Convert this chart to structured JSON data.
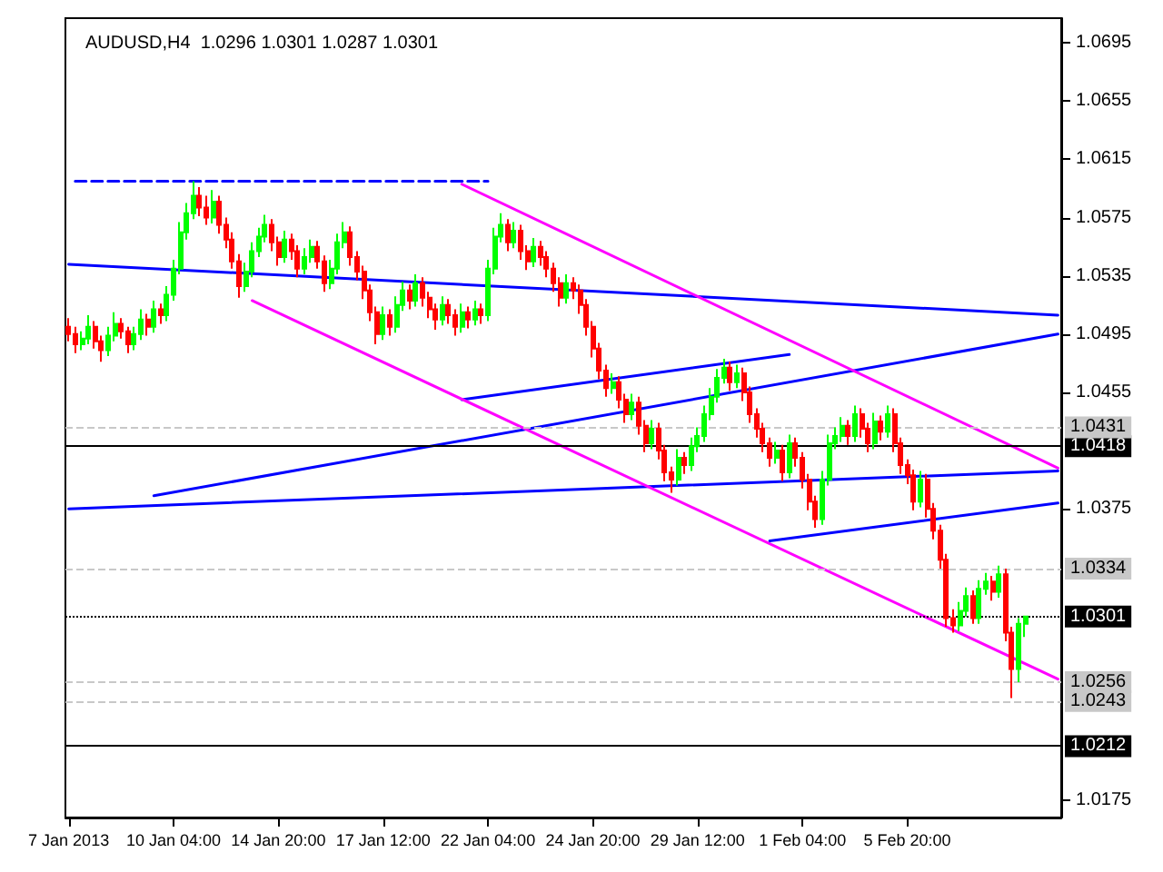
{
  "chart_data": {
    "type": "candlestick",
    "title": "AUDUSD,H4  1.0296 1.0301 1.0287 1.0301",
    "categories": [
      "7 Jan 2013",
      null,
      null,
      null,
      null,
      null,
      null,
      null,
      null,
      null,
      null,
      null,
      null,
      null,
      null,
      null,
      "10 Jan 04:00",
      null,
      null,
      null,
      null,
      null,
      null,
      null,
      null,
      null,
      null,
      null,
      null,
      null,
      null,
      null,
      "14 Jan 20:00",
      null,
      null,
      null,
      null,
      null,
      null,
      null,
      null,
      null,
      null,
      null,
      null,
      null,
      null,
      null,
      "17 Jan 12:00",
      null,
      null,
      null,
      null,
      null,
      null,
      null,
      null,
      null,
      null,
      null,
      null,
      null,
      null,
      null,
      "22 Jan 04:00",
      null,
      null,
      null,
      null,
      null,
      null,
      null,
      null,
      null,
      null,
      null,
      null,
      null,
      null,
      null,
      "24 Jan 20:00",
      null,
      null,
      null,
      null,
      null,
      null,
      null,
      null,
      null,
      null,
      null,
      null,
      null,
      null,
      null,
      "29 Jan 12:00",
      null,
      null,
      null,
      null,
      null,
      null,
      null,
      null,
      null,
      null,
      null,
      null,
      null,
      null,
      null,
      "1 Feb 04:00",
      null,
      null,
      null,
      null,
      null,
      null,
      null,
      null,
      null,
      null,
      null,
      null,
      null,
      null,
      null,
      "5 Feb 20:00",
      null,
      null,
      null,
      null,
      null,
      null,
      null,
      null,
      null,
      null,
      null,
      null,
      null,
      null,
      null,
      null,
      null,
      null,
      null,
      null,
      null,
      null,
      null
    ],
    "ohlc": [
      [
        1.05,
        1.0506,
        1.049,
        1.0495
      ],
      [
        1.0495,
        1.05,
        1.0482,
        1.0488
      ],
      [
        1.0488,
        1.0497,
        1.0484,
        1.0492
      ],
      [
        1.0492,
        1.0508,
        1.0488,
        1.05
      ],
      [
        1.05,
        1.0504,
        1.0485,
        1.049
      ],
      [
        1.049,
        1.0494,
        1.0476,
        1.0484
      ],
      [
        1.0484,
        1.05,
        1.048,
        1.0494
      ],
      [
        1.0494,
        1.051,
        1.049,
        1.0502
      ],
      [
        1.0502,
        1.0506,
        1.0492,
        1.0497
      ],
      [
        1.0497,
        1.05,
        1.0482,
        1.0488
      ],
      [
        1.0488,
        1.05,
        1.0484,
        1.0495
      ],
      [
        1.0495,
        1.0512,
        1.0491,
        1.0505
      ],
      [
        1.0505,
        1.0509,
        1.0494,
        1.05
      ],
      [
        1.05,
        1.0518,
        1.0496,
        1.0512
      ],
      [
        1.0512,
        1.0516,
        1.0502,
        1.0508
      ],
      [
        1.0508,
        1.0528,
        1.0504,
        1.0522
      ],
      [
        1.0522,
        1.0546,
        1.0518,
        1.054
      ],
      [
        1.054,
        1.0572,
        1.0536,
        1.0565
      ],
      [
        1.0565,
        1.0585,
        1.056,
        1.0578
      ],
      [
        1.0578,
        1.06,
        1.0574,
        1.059
      ],
      [
        1.059,
        1.0596,
        1.0576,
        1.0582
      ],
      [
        1.0582,
        1.059,
        1.057,
        1.0575
      ],
      [
        1.0575,
        1.0594,
        1.0571,
        1.0586
      ],
      [
        1.0586,
        1.059,
        1.0564,
        1.057
      ],
      [
        1.057,
        1.0575,
        1.0554,
        1.056
      ],
      [
        1.056,
        1.0565,
        1.054,
        1.0545
      ],
      [
        1.0545,
        1.055,
        1.052,
        1.0528
      ],
      [
        1.0528,
        1.0544,
        1.0524,
        1.0538
      ],
      [
        1.0538,
        1.0558,
        1.0534,
        1.0552
      ],
      [
        1.0552,
        1.0568,
        1.0548,
        1.0562
      ],
      [
        1.0562,
        1.0577,
        1.0558,
        1.057
      ],
      [
        1.057,
        1.0574,
        1.0552,
        1.0558
      ],
      [
        1.0558,
        1.0562,
        1.0542,
        1.0548
      ],
      [
        1.0548,
        1.0566,
        1.0544,
        1.056
      ],
      [
        1.056,
        1.0564,
        1.0546,
        1.0552
      ],
      [
        1.0552,
        1.0556,
        1.0534,
        1.054
      ],
      [
        1.054,
        1.0554,
        1.0536,
        1.0548
      ],
      [
        1.0548,
        1.056,
        1.0544,
        1.0555
      ],
      [
        1.0555,
        1.0559,
        1.054,
        1.0545
      ],
      [
        1.0545,
        1.0549,
        1.0524,
        1.053
      ],
      [
        1.053,
        1.0546,
        1.0526,
        1.054
      ],
      [
        1.054,
        1.0564,
        1.0536,
        1.0558
      ],
      [
        1.0558,
        1.0572,
        1.0554,
        1.0565
      ],
      [
        1.0565,
        1.0569,
        1.0542,
        1.0548
      ],
      [
        1.0548,
        1.0552,
        1.0532,
        1.0538
      ],
      [
        1.0538,
        1.0542,
        1.0519,
        1.0525
      ],
      [
        1.0525,
        1.0529,
        1.0504,
        1.051
      ],
      [
        1.051,
        1.0514,
        1.0488,
        1.0495
      ],
      [
        1.0495,
        1.0514,
        1.0491,
        1.0508
      ],
      [
        1.0508,
        1.0512,
        1.0494,
        1.05
      ],
      [
        1.05,
        1.0521,
        1.0496,
        1.0515
      ],
      [
        1.0515,
        1.0531,
        1.0511,
        1.0525
      ],
      [
        1.0525,
        1.0529,
        1.0512,
        1.0518
      ],
      [
        1.0518,
        1.0536,
        1.0514,
        1.053
      ],
      [
        1.053,
        1.0534,
        1.0514,
        1.052
      ],
      [
        1.052,
        1.0524,
        1.0506,
        1.0512
      ],
      [
        1.0512,
        1.0516,
        1.0498,
        1.0505
      ],
      [
        1.0505,
        1.0521,
        1.0501,
        1.0515
      ],
      [
        1.0515,
        1.0519,
        1.0502,
        1.0508
      ],
      [
        1.0508,
        1.0512,
        1.0494,
        1.05
      ],
      [
        1.05,
        1.0516,
        1.0496,
        1.051
      ],
      [
        1.051,
        1.0514,
        1.0499,
        1.0505
      ],
      [
        1.0505,
        1.0518,
        1.0501,
        1.0512
      ],
      [
        1.0512,
        1.0516,
        1.0502,
        1.0508
      ],
      [
        1.0508,
        1.0546,
        1.0504,
        1.054
      ],
      [
        1.054,
        1.0568,
        1.0536,
        1.0562
      ],
      [
        1.0562,
        1.0578,
        1.0558,
        1.057
      ],
      [
        1.057,
        1.0574,
        1.0552,
        1.0558
      ],
      [
        1.0558,
        1.0572,
        1.0554,
        1.0566
      ],
      [
        1.0566,
        1.057,
        1.0546,
        1.0552
      ],
      [
        1.0552,
        1.0556,
        1.0539,
        1.0545
      ],
      [
        1.0545,
        1.0561,
        1.0541,
        1.0555
      ],
      [
        1.0555,
        1.0559,
        1.0542,
        1.0548
      ],
      [
        1.0548,
        1.0552,
        1.0534,
        1.054
      ],
      [
        1.054,
        1.0544,
        1.0524,
        1.053
      ],
      [
        1.053,
        1.0534,
        1.0514,
        1.052
      ],
      [
        1.052,
        1.0536,
        1.0516,
        1.053
      ],
      [
        1.053,
        1.0534,
        1.0519,
        1.0525
      ],
      [
        1.0525,
        1.0529,
        1.0509,
        1.0515
      ],
      [
        1.0515,
        1.0519,
        1.0494,
        1.05
      ],
      [
        1.05,
        1.0504,
        1.0479,
        1.0485
      ],
      [
        1.0485,
        1.0489,
        1.0464,
        1.047
      ],
      [
        1.047,
        1.0474,
        1.0452,
        1.0458
      ],
      [
        1.0458,
        1.0468,
        1.0454,
        1.0462
      ],
      [
        1.0462,
        1.0466,
        1.0444,
        1.045
      ],
      [
        1.045,
        1.0454,
        1.0434,
        1.044
      ],
      [
        1.044,
        1.0454,
        1.0436,
        1.0448
      ],
      [
        1.0448,
        1.0452,
        1.0426,
        1.0432
      ],
      [
        1.0432,
        1.0436,
        1.0414,
        1.042
      ],
      [
        1.042,
        1.0436,
        1.0416,
        1.043
      ],
      [
        1.043,
        1.0434,
        1.0409,
        1.0415
      ],
      [
        1.0415,
        1.0419,
        1.0394,
        1.04
      ],
      [
        1.04,
        1.0404,
        1.0386,
        1.0395
      ],
      [
        1.0395,
        1.0416,
        1.0391,
        1.041
      ],
      [
        1.041,
        1.0414,
        1.0399,
        1.0405
      ],
      [
        1.0405,
        1.0424,
        1.0401,
        1.0418
      ],
      [
        1.0418,
        1.0431,
        1.0414,
        1.0425
      ],
      [
        1.0425,
        1.0446,
        1.0421,
        1.044
      ],
      [
        1.044,
        1.0458,
        1.0436,
        1.0452
      ],
      [
        1.0452,
        1.0471,
        1.0448,
        1.0465
      ],
      [
        1.0465,
        1.0478,
        1.0461,
        1.0472
      ],
      [
        1.0472,
        1.0476,
        1.0456,
        1.0462
      ],
      [
        1.0462,
        1.0474,
        1.0458,
        1.0468
      ],
      [
        1.0468,
        1.0472,
        1.0449,
        1.0455
      ],
      [
        1.0455,
        1.0459,
        1.0434,
        1.044
      ],
      [
        1.044,
        1.0444,
        1.0424,
        1.043
      ],
      [
        1.043,
        1.0434,
        1.0414,
        1.042
      ],
      [
        1.042,
        1.0424,
        1.0404,
        1.041
      ],
      [
        1.041,
        1.0421,
        1.0406,
        1.0415
      ],
      [
        1.0415,
        1.0419,
        1.0394,
        1.04
      ],
      [
        1.04,
        1.0426,
        1.0396,
        1.042
      ],
      [
        1.042,
        1.0424,
        1.0404,
        1.041
      ],
      [
        1.041,
        1.0414,
        1.0389,
        1.0395
      ],
      [
        1.0395,
        1.0399,
        1.0374,
        1.038
      ],
      [
        1.038,
        1.0384,
        1.0362,
        1.0368
      ],
      [
        1.0368,
        1.0401,
        1.0364,
        1.0395
      ],
      [
        1.0395,
        1.0426,
        1.0391,
        1.042
      ],
      [
        1.042,
        1.0431,
        1.0416,
        1.0425
      ],
      [
        1.0425,
        1.0438,
        1.0421,
        1.0432
      ],
      [
        1.0432,
        1.0436,
        1.0419,
        1.0425
      ],
      [
        1.0425,
        1.0446,
        1.0421,
        1.044
      ],
      [
        1.044,
        1.0444,
        1.0424,
        1.043
      ],
      [
        1.043,
        1.0434,
        1.0414,
        1.042
      ],
      [
        1.042,
        1.0441,
        1.0416,
        1.0435
      ],
      [
        1.0435,
        1.0439,
        1.0422,
        1.0428
      ],
      [
        1.0428,
        1.0446,
        1.0424,
        1.044
      ],
      [
        1.044,
        1.0444,
        1.0414,
        1.042
      ],
      [
        1.042,
        1.0424,
        1.0399,
        1.0405
      ],
      [
        1.0405,
        1.0409,
        1.0392,
        1.0398
      ],
      [
        1.0398,
        1.0402,
        1.0374,
        1.038
      ],
      [
        1.038,
        1.0401,
        1.0376,
        1.0395
      ],
      [
        1.0395,
        1.0399,
        1.0369,
        1.0375
      ],
      [
        1.0375,
        1.0379,
        1.0354,
        1.036
      ],
      [
        1.036,
        1.0364,
        1.0334,
        1.034
      ],
      [
        1.034,
        1.0344,
        1.0294,
        1.03
      ],
      [
        1.03,
        1.0306,
        1.029,
        1.0295
      ],
      [
        1.0295,
        1.0311,
        1.0291,
        1.0305
      ],
      [
        1.0305,
        1.0321,
        1.0301,
        1.0315
      ],
      [
        1.0315,
        1.0319,
        1.0296,
        1.03
      ],
      [
        1.03,
        1.0326,
        1.0296,
        1.032
      ],
      [
        1.032,
        1.0331,
        1.0316,
        1.0325
      ],
      [
        1.0325,
        1.0329,
        1.0312,
        1.0318
      ],
      [
        1.0318,
        1.0336,
        1.0314,
        1.033
      ],
      [
        1.033,
        1.0334,
        1.0284,
        1.029
      ],
      [
        1.029,
        1.0294,
        1.0245,
        1.0265
      ],
      [
        1.0265,
        1.03,
        1.0256,
        1.0296
      ],
      [
        1.0296,
        1.0301,
        1.0287,
        1.0301
      ],
      null,
      null,
      null,
      null,
      null
    ],
    "series": [
      {
        "type": "line",
        "color": "#0000ff",
        "values": [
          1.0543,
          null,
          null,
          null,
          null,
          null,
          null,
          null,
          null,
          null,
          null,
          null,
          null,
          null,
          null,
          null,
          null,
          null,
          null,
          null,
          null,
          null,
          null,
          null,
          null,
          null,
          null,
          null,
          null,
          null,
          null,
          null,
          null,
          null,
          null,
          null,
          null,
          null,
          null,
          null,
          null,
          null,
          null,
          null,
          null,
          null,
          null,
          null,
          null,
          null,
          null,
          null,
          null,
          null,
          null,
          null,
          null,
          null,
          null,
          null,
          null,
          null,
          null,
          null,
          null,
          null,
          null,
          null,
          null,
          null,
          null,
          null,
          null,
          null,
          null,
          null,
          null,
          null,
          null,
          null,
          null,
          null,
          null,
          null,
          null,
          null,
          null,
          null,
          null,
          null,
          null,
          null,
          null,
          null,
          null,
          null,
          null,
          null,
          null,
          null,
          null,
          null,
          null,
          null,
          null,
          null,
          null,
          null,
          null,
          null,
          null,
          null,
          null,
          null,
          null,
          null,
          null,
          null,
          null,
          null,
          null,
          null,
          null,
          null,
          null,
          null,
          null,
          null,
          null,
          null,
          null,
          null,
          null,
          null,
          null,
          null,
          null,
          null,
          null,
          null,
          null,
          null,
          null,
          null,
          null,
          null,
          null,
          null,
          null,
          null,
          null,
          1.0508
        ]
      },
      {
        "type": "line",
        "color": "#0000ff",
        "values": [
          null,
          null,
          null,
          null,
          null,
          null,
          null,
          null,
          null,
          null,
          null,
          null,
          null,
          1.0384,
          null,
          null,
          null,
          null,
          null,
          null,
          null,
          null,
          null,
          null,
          null,
          null,
          null,
          null,
          null,
          null,
          null,
          null,
          null,
          null,
          null,
          null,
          null,
          null,
          null,
          null,
          null,
          null,
          null,
          null,
          null,
          null,
          null,
          null,
          null,
          null,
          null,
          null,
          null,
          null,
          null,
          null,
          null,
          null,
          null,
          null,
          null,
          null,
          null,
          null,
          null,
          null,
          null,
          null,
          null,
          null,
          null,
          null,
          null,
          null,
          null,
          null,
          null,
          null,
          null,
          null,
          null,
          null,
          null,
          null,
          null,
          null,
          null,
          null,
          null,
          null,
          null,
          null,
          null,
          null,
          null,
          null,
          null,
          null,
          null,
          null,
          null,
          null,
          null,
          null,
          null,
          null,
          null,
          null,
          null,
          null,
          null,
          null,
          null,
          null,
          null,
          null,
          null,
          null,
          null,
          null,
          null,
          null,
          null,
          null,
          null,
          null,
          null,
          null,
          null,
          null,
          null,
          null,
          null,
          null,
          null,
          null,
          null,
          null,
          null,
          null,
          null,
          null,
          null,
          null,
          null,
          null,
          null,
          null,
          null,
          null,
          null,
          1.0495
        ]
      },
      {
        "type": "line",
        "color": "#0000ff",
        "values": [
          1.0375,
          null,
          null,
          null,
          null,
          null,
          null,
          null,
          null,
          null,
          null,
          null,
          null,
          null,
          null,
          null,
          null,
          null,
          null,
          null,
          null,
          null,
          null,
          null,
          null,
          null,
          null,
          null,
          null,
          null,
          null,
          null,
          null,
          null,
          null,
          null,
          null,
          null,
          null,
          null,
          null,
          null,
          null,
          null,
          null,
          null,
          null,
          null,
          null,
          null,
          null,
          null,
          null,
          null,
          null,
          null,
          null,
          null,
          null,
          null,
          null,
          null,
          null,
          null,
          null,
          null,
          null,
          null,
          null,
          null,
          null,
          null,
          null,
          null,
          null,
          null,
          null,
          null,
          null,
          null,
          null,
          null,
          null,
          null,
          null,
          null,
          null,
          null,
          null,
          null,
          null,
          null,
          null,
          null,
          null,
          null,
          null,
          null,
          null,
          null,
          null,
          null,
          null,
          null,
          null,
          null,
          null,
          null,
          null,
          null,
          null,
          null,
          null,
          null,
          null,
          null,
          null,
          null,
          null,
          null,
          null,
          null,
          null,
          null,
          null,
          null,
          null,
          null,
          null,
          null,
          null,
          null,
          null,
          null,
          null,
          null,
          null,
          null,
          null,
          null,
          null,
          null,
          null,
          null,
          null,
          null,
          null,
          null,
          null,
          null,
          null,
          1.0401
        ]
      },
      {
        "type": "line",
        "color": "#0000ff",
        "values": [
          null,
          null,
          null,
          null,
          null,
          null,
          null,
          null,
          null,
          null,
          null,
          null,
          null,
          null,
          null,
          null,
          null,
          null,
          null,
          null,
          null,
          null,
          null,
          null,
          null,
          null,
          null,
          null,
          null,
          null,
          null,
          null,
          null,
          null,
          null,
          null,
          null,
          null,
          null,
          null,
          null,
          null,
          null,
          null,
          null,
          null,
          null,
          null,
          null,
          null,
          null,
          null,
          null,
          null,
          null,
          null,
          null,
          null,
          null,
          null,
          1.045,
          null,
          null,
          null,
          null,
          null,
          null,
          null,
          null,
          null,
          null,
          null,
          null,
          null,
          null,
          null,
          null,
          null,
          null,
          null,
          null,
          null,
          null,
          null,
          null,
          null,
          null,
          null,
          null,
          null,
          null,
          null,
          null,
          null,
          null,
          null,
          null,
          null,
          null,
          null,
          null,
          null,
          null,
          null,
          null,
          null,
          null,
          null,
          null,
          null,
          1.0481,
          null,
          null,
          null,
          null,
          null,
          null,
          null,
          null,
          null,
          null,
          null,
          null,
          null,
          null,
          null,
          null,
          null,
          null,
          null,
          null,
          null,
          null,
          null,
          null,
          null,
          null,
          null,
          null,
          null,
          null,
          null,
          null,
          null,
          null,
          null,
          null,
          null,
          null,
          null,
          null,
          null
        ]
      },
      {
        "type": "line",
        "color": "#0000ff",
        "values": [
          null,
          null,
          null,
          null,
          null,
          null,
          null,
          null,
          null,
          null,
          null,
          null,
          null,
          null,
          null,
          null,
          null,
          null,
          null,
          null,
          null,
          null,
          null,
          null,
          null,
          null,
          null,
          null,
          null,
          null,
          null,
          null,
          null,
          null,
          null,
          null,
          null,
          null,
          null,
          null,
          null,
          null,
          null,
          null,
          null,
          null,
          null,
          null,
          null,
          null,
          null,
          null,
          null,
          null,
          null,
          null,
          null,
          null,
          null,
          null,
          null,
          null,
          null,
          null,
          null,
          null,
          null,
          null,
          null,
          null,
          null,
          null,
          null,
          null,
          null,
          null,
          null,
          null,
          null,
          null,
          null,
          null,
          null,
          null,
          null,
          null,
          null,
          null,
          null,
          null,
          null,
          null,
          null,
          null,
          null,
          null,
          null,
          null,
          null,
          null,
          null,
          null,
          null,
          null,
          null,
          null,
          null,
          1.0353,
          null,
          null,
          null,
          null,
          null,
          null,
          null,
          null,
          null,
          null,
          null,
          null,
          null,
          null,
          null,
          null,
          null,
          null,
          null,
          null,
          null,
          null,
          null,
          null,
          null,
          null,
          null,
          null,
          null,
          null,
          null,
          null,
          null,
          null,
          null,
          null,
          null,
          null,
          null,
          null,
          null,
          null,
          null,
          1.0379
        ]
      },
      {
        "type": "line",
        "color": "#0000ff",
        "line_style": "dashed",
        "values": [
          null,
          1.06,
          null,
          null,
          null,
          null,
          null,
          null,
          null,
          null,
          null,
          null,
          null,
          null,
          null,
          null,
          null,
          null,
          null,
          null,
          null,
          null,
          null,
          null,
          null,
          null,
          null,
          null,
          null,
          null,
          null,
          null,
          null,
          null,
          null,
          null,
          null,
          null,
          null,
          null,
          null,
          null,
          null,
          null,
          null,
          null,
          null,
          null,
          null,
          null,
          null,
          null,
          null,
          null,
          null,
          null,
          null,
          null,
          null,
          null,
          null,
          null,
          null,
          null,
          1.06,
          null,
          null,
          null,
          null,
          null,
          null,
          null,
          null,
          null,
          null,
          null,
          null,
          null,
          null,
          null,
          null,
          null,
          null,
          null,
          null,
          null,
          null,
          null,
          null,
          null,
          null,
          null,
          null,
          null,
          null,
          null,
          null,
          null,
          null,
          null,
          null,
          null,
          null,
          null,
          null,
          null,
          null,
          null,
          null,
          null,
          null,
          null,
          null,
          null,
          null,
          null,
          null,
          null,
          null,
          null,
          null,
          null,
          null,
          null,
          null,
          null,
          null,
          null,
          null,
          null,
          null,
          null,
          null,
          null,
          null,
          null,
          null,
          null,
          null,
          null,
          null,
          null,
          null,
          null,
          null,
          null,
          null,
          null,
          null,
          null,
          null,
          null
        ]
      },
      {
        "type": "line",
        "color": "#ff00ff",
        "values": [
          null,
          null,
          null,
          null,
          null,
          null,
          null,
          null,
          null,
          null,
          null,
          null,
          null,
          null,
          null,
          null,
          null,
          null,
          null,
          null,
          null,
          null,
          null,
          null,
          null,
          null,
          null,
          null,
          1.0518,
          null,
          null,
          null,
          null,
          null,
          null,
          null,
          null,
          null,
          null,
          null,
          null,
          null,
          null,
          null,
          null,
          null,
          null,
          null,
          null,
          null,
          null,
          null,
          null,
          null,
          null,
          null,
          null,
          null,
          null,
          null,
          null,
          null,
          null,
          null,
          null,
          null,
          null,
          null,
          null,
          null,
          null,
          null,
          null,
          null,
          null,
          null,
          null,
          null,
          null,
          null,
          null,
          null,
          null,
          null,
          null,
          null,
          null,
          null,
          null,
          null,
          null,
          null,
          null,
          null,
          null,
          null,
          null,
          null,
          null,
          null,
          null,
          null,
          null,
          null,
          null,
          null,
          null,
          null,
          null,
          null,
          null,
          null,
          null,
          null,
          null,
          null,
          null,
          null,
          null,
          null,
          null,
          null,
          null,
          null,
          null,
          null,
          null,
          null,
          null,
          null,
          null,
          null,
          null,
          null,
          null,
          null,
          null,
          null,
          null,
          null,
          null,
          null,
          null,
          null,
          null,
          null,
          null,
          null,
          null,
          null,
          null,
          1.0258
        ]
      },
      {
        "type": "line",
        "color": "#ff00ff",
        "values": [
          null,
          null,
          null,
          null,
          null,
          null,
          null,
          null,
          null,
          null,
          null,
          null,
          null,
          null,
          null,
          null,
          null,
          null,
          null,
          null,
          null,
          null,
          null,
          null,
          null,
          null,
          null,
          null,
          null,
          null,
          null,
          null,
          null,
          null,
          null,
          null,
          null,
          null,
          null,
          null,
          null,
          null,
          null,
          null,
          null,
          null,
          null,
          null,
          null,
          null,
          null,
          null,
          null,
          null,
          null,
          null,
          null,
          null,
          null,
          null,
          1.0598,
          null,
          null,
          null,
          null,
          null,
          null,
          null,
          null,
          null,
          null,
          null,
          null,
          null,
          null,
          null,
          null,
          null,
          null,
          null,
          null,
          null,
          null,
          null,
          null,
          null,
          null,
          null,
          null,
          null,
          null,
          null,
          null,
          null,
          null,
          null,
          null,
          null,
          null,
          null,
          null,
          null,
          null,
          null,
          null,
          null,
          null,
          null,
          null,
          null,
          null,
          null,
          null,
          null,
          null,
          null,
          null,
          null,
          null,
          null,
          null,
          null,
          null,
          null,
          null,
          null,
          null,
          null,
          null,
          null,
          null,
          null,
          null,
          null,
          null,
          null,
          null,
          null,
          null,
          null,
          null,
          null,
          null,
          null,
          null,
          null,
          null,
          null,
          null,
          null,
          null,
          1.0403
        ]
      }
    ],
    "ylim": [
      1.0163,
      1.0712
    ],
    "yticks": [
      1.0695,
      1.0655,
      1.0615,
      1.0575,
      1.0535,
      1.0495,
      1.0455,
      1.0375,
      1.0175
    ],
    "ref_lines": [
      {
        "axis": "y",
        "value": 1.0418,
        "label": "1.0418",
        "color": "#000000",
        "line_style": "solid"
      },
      {
        "axis": "y",
        "value": 1.0212,
        "label": "1.0212",
        "color": "#000000",
        "line_style": "solid"
      },
      {
        "axis": "y",
        "value": 1.0301,
        "label": "1.0301",
        "color": "#000000",
        "line_style": "dotted"
      },
      {
        "axis": "y",
        "value": 1.0431,
        "label": "1.0431",
        "color": "#c8c8c8",
        "line_style": "dashed"
      },
      {
        "axis": "y",
        "value": 1.0334,
        "label": "1.0334",
        "color": "#c8c8c8",
        "line_style": "dashed"
      },
      {
        "axis": "y",
        "value": 1.0256,
        "label": "1.0256",
        "color": "#c8c8c8",
        "line_style": "dashed"
      },
      {
        "axis": "y",
        "value": 1.0243,
        "label": "1.0243",
        "color": "#c8c8c8",
        "line_style": "dashed"
      }
    ]
  }
}
